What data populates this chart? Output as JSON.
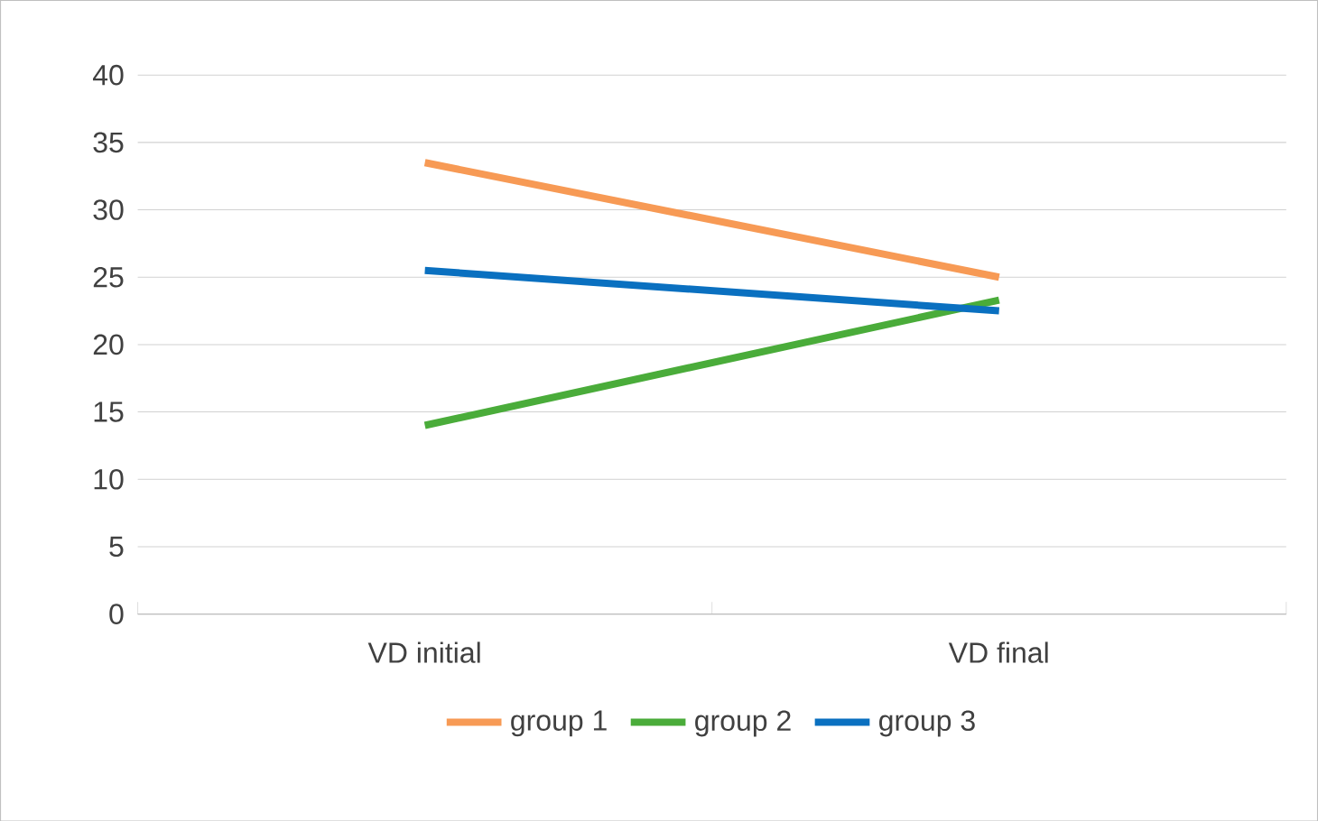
{
  "chart_data": {
    "type": "line",
    "categories": [
      "VD initial",
      "VD final"
    ],
    "series": [
      {
        "name": "group 1",
        "color": "#f79a55",
        "values": [
          33.5,
          25
        ]
      },
      {
        "name": "group 2",
        "color": "#4aac3a",
        "values": [
          14,
          23.3
        ]
      },
      {
        "name": "group 3",
        "color": "#0a70c0",
        "values": [
          25.5,
          22.5
        ]
      }
    ],
    "ylim": [
      0,
      40
    ],
    "yticks": [
      0,
      5,
      10,
      15,
      20,
      25,
      30,
      35,
      40
    ],
    "grid": "y",
    "legend": "bottom",
    "marker": "none",
    "line_style": "solid"
  }
}
